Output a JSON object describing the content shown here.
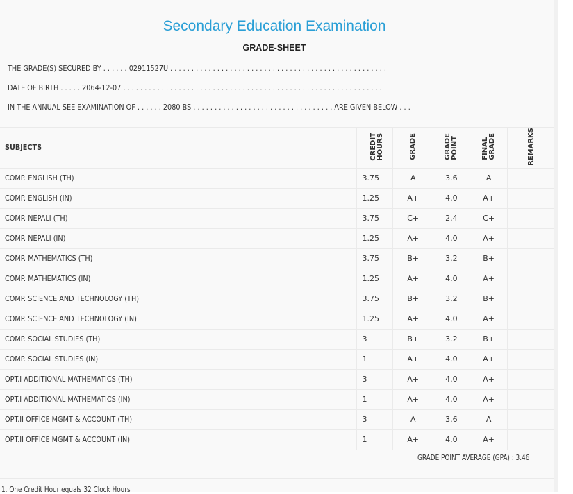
{
  "title": "Secondary Education Examination",
  "subtitle": "GRADE-SHEET",
  "info": [
    {
      "label": "THE GRADE(S) SECURED BY",
      "lead": " . . . . . . ",
      "value": "02911527U",
      "trail": " . . . . . . . . . . . . . . . . . . . . . . . . . . . . . . . . . . . . . . . . . . . . . . . . . . ."
    },
    {
      "label": "DATE OF BIRTH",
      "lead": " . . . . . ",
      "value": "2064-12-07",
      "trail": " . . . . . . . . . . . . . . . . . . . . . . . . . . . . . . . . . . . . . . . . . . . . . . . . . . . . . . . . . . . . ."
    },
    {
      "label": "IN THE ANNUAL SEE EXAMINATION OF",
      "lead": " . . . . . . ",
      "value": "2080 BS",
      "trail": " . . . . . . . . . . . . . . . . . . . . . . . . . . . . . . . . . ARE GIVEN BELOW . . ."
    }
  ],
  "table": {
    "headers": {
      "subjects": "SUBJECTS",
      "credit_l1": "CREDIT",
      "credit_l2": "HOURS",
      "grade": "GRADE",
      "gp_l1": "GRADE",
      "gp_l2": "POINT",
      "fg_l1": "FINAL",
      "fg_l2": "GRADE",
      "remarks": "REMARKS"
    },
    "rows": [
      [
        "COMP. ENGLISH (TH)",
        "3.75",
        "A",
        "3.6",
        "A"
      ],
      [
        "COMP. ENGLISH (IN)",
        "1.25",
        "A+",
        "4.0",
        "A+"
      ],
      [
        "COMP. NEPALI (TH)",
        "3.75",
        "C+",
        "2.4",
        "C+"
      ],
      [
        "COMP. NEPALI (IN)",
        "1.25",
        "A+",
        "4.0",
        "A+"
      ],
      [
        "COMP. MATHEMATICS (TH)",
        "3.75",
        "B+",
        "3.2",
        "B+"
      ],
      [
        "COMP. MATHEMATICS (IN)",
        "1.25",
        "A+",
        "4.0",
        "A+"
      ],
      [
        "COMP. SCIENCE AND TECHNOLOGY (TH)",
        "3.75",
        "B+",
        "3.2",
        "B+"
      ],
      [
        "COMP. SCIENCE AND TECHNOLOGY (IN)",
        "1.25",
        "A+",
        "4.0",
        "A+"
      ],
      [
        "COMP. SOCIAL STUDIES (TH)",
        "3",
        "B+",
        "3.2",
        "B+"
      ],
      [
        "COMP. SOCIAL STUDIES (IN)",
        "1",
        "A+",
        "4.0",
        "A+"
      ],
      [
        "OPT.I ADDITIONAL MATHEMATICS (TH)",
        "3",
        "A+",
        "4.0",
        "A+"
      ],
      [
        "OPT.I ADDITIONAL MATHEMATICS (IN)",
        "1",
        "A+",
        "4.0",
        "A+"
      ],
      [
        "OPT.II OFFICE MGMT & ACCOUNT (TH)",
        "3",
        "A",
        "3.6",
        "A"
      ],
      [
        "OPT.II OFFICE MGMT & ACCOUNT (IN)",
        "1",
        "A+",
        "4.0",
        "A+"
      ]
    ]
  },
  "gpa": "GRADE POINT AVERAGE (GPA) : 3.46",
  "note": "1. One Credit Hour equals 32 Clock Hours"
}
